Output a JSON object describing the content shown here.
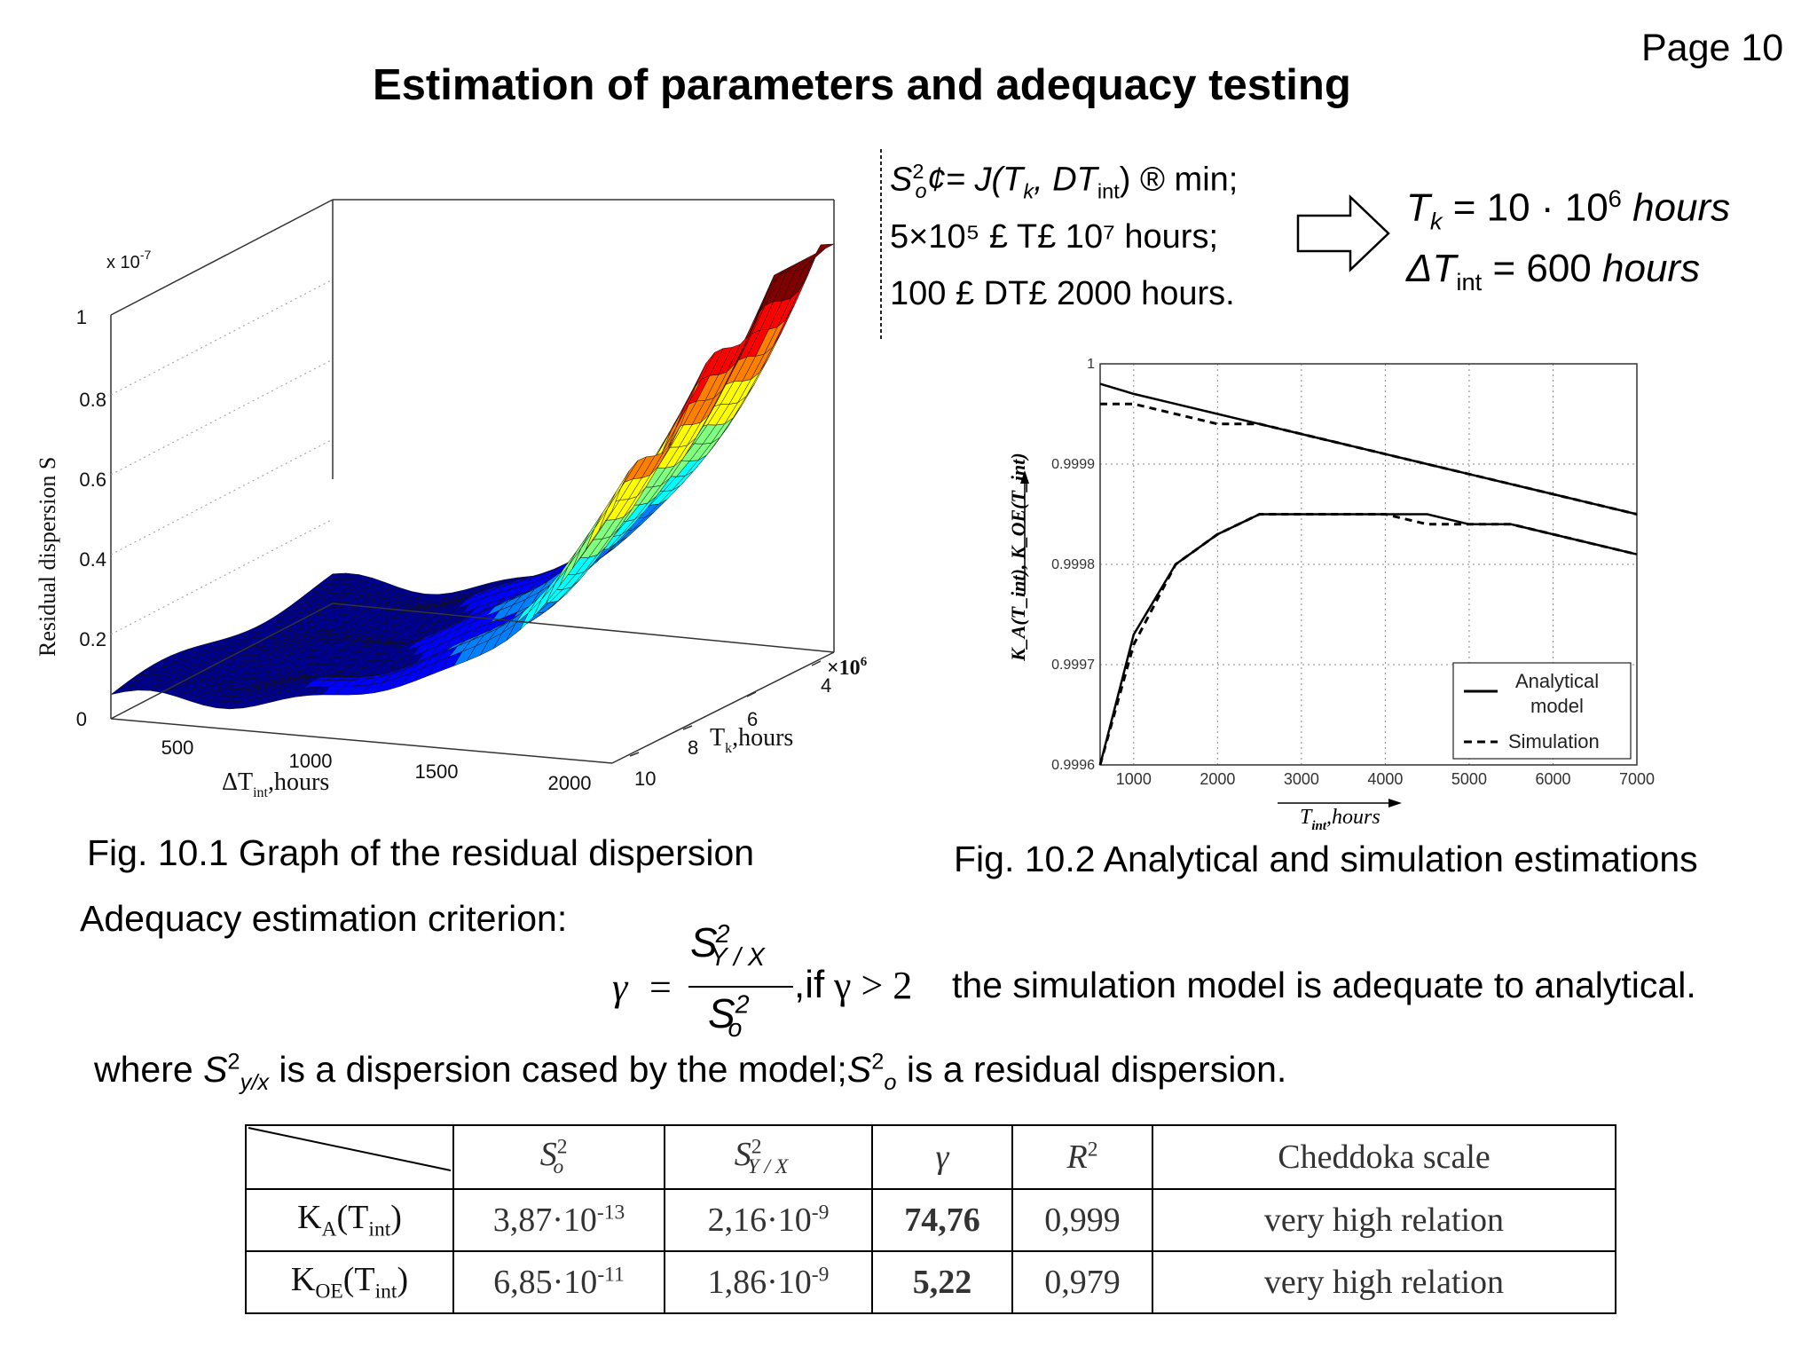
{
  "page": {
    "number": "Page 10",
    "title": "Estimation of parameters and adequacy testing"
  },
  "fig1": {
    "caption": "Fig. 10.1 Graph of the residual dispersion",
    "multiplier": "x 10",
    "multiplier_exp": "-7",
    "z_axis_label": "Residual dispersion S",
    "z_ticks": [
      "0",
      "0.2",
      "0.4",
      "0.6",
      "0.8",
      "1"
    ],
    "x_axis_label": "ΔT",
    "x_axis_sub": "int",
    "x_axis_unit": ",hours",
    "x_ticks": [
      "500",
      "1000",
      "1500",
      "2000"
    ],
    "y_axis_label": "T",
    "y_axis_sub": "k",
    "y_axis_unit": ",hours",
    "y_multiplier": "×10",
    "y_multiplier_exp": "6",
    "y_ticks": [
      "4",
      "6",
      "8",
      "10"
    ],
    "colormap": [
      "#00008f",
      "#0000ff",
      "#0080ff",
      "#00ffff",
      "#80ff80",
      "#ffff00",
      "#ff8000",
      "#ff0000",
      "#800000"
    ]
  },
  "conditions": {
    "line1": {
      "text": "S",
      "sub": "o",
      "sup": "2",
      "rest": "¢= J(T",
      "rest2": ", DT",
      "rest3": ") ® min;"
    },
    "line2": "5×10⁵ £ T£ 10⁷ hours;",
    "line3": "100 £ DT£ 2000 hours."
  },
  "result": {
    "tk": "T",
    "tk_sub": "k",
    "tk_value": "= 10 · 10",
    "tk_exp": "6",
    "tk_unit": "hours",
    "dt": "ΔT",
    "dt_sub": "int",
    "dt_value": "= 600",
    "dt_unit": "hours"
  },
  "fig2": {
    "caption": "Fig. 10.2 Analytical and simulation estimations",
    "y_ticks": [
      "0.9996",
      "0.9997",
      "0.9998",
      "0.9999",
      "1"
    ],
    "x_ticks": [
      "1000",
      "2000",
      "3000",
      "4000",
      "5000",
      "6000",
      "7000"
    ],
    "y_label": "K_A(T_int), K_OE(T_int)",
    "x_label": "T",
    "x_label_sub": "int",
    "x_label_unit": ",hours",
    "legend": {
      "analytical_1": "Analytical",
      "analytical_2": "model",
      "simulation": "Simulation"
    }
  },
  "chart_data": {
    "type": "line",
    "title": "",
    "xlabel": "T_int, hours",
    "ylabel": "K_A(T_int), K_OE(T_int)",
    "xlim": [
      600,
      7000
    ],
    "ylim": [
      0.9996,
      1
    ],
    "grid": true,
    "legend_position": "bottom-right",
    "x": [
      600,
      1000,
      1500,
      2000,
      2500,
      3000,
      3500,
      4000,
      4500,
      5000,
      5500,
      6000,
      6500,
      7000
    ],
    "series": [
      {
        "name": "Analytical model",
        "values": [
          0.99998,
          0.99997,
          0.99996,
          0.99995,
          0.99994,
          0.99993,
          0.99992,
          0.99991,
          0.9999,
          0.99989,
          0.99988,
          0.99987,
          0.99986,
          0.99985
        ]
      },
      {
        "name": "Simulation",
        "values": [
          0.99996,
          0.99996,
          0.99995,
          0.99994,
          0.99994,
          0.99993,
          0.99992,
          0.99991,
          0.9999,
          0.99989,
          0.99988,
          0.99987,
          0.99986,
          0.99985
        ]
      },
      {
        "name": "Analytical model",
        "values": [
          0.9996,
          0.99973,
          0.9998,
          0.99983,
          0.99985,
          0.99985,
          0.99985,
          0.99985,
          0.99985,
          0.99984,
          0.99984,
          0.99983,
          0.99982,
          0.99981
        ]
      },
      {
        "name": "Simulation",
        "values": [
          0.9996,
          0.99972,
          0.9998,
          0.99983,
          0.99985,
          0.99985,
          0.99985,
          0.99985,
          0.99984,
          0.99984,
          0.99984,
          0.99983,
          0.99982,
          0.99981
        ]
      }
    ]
  },
  "criterion": {
    "label": "Adequacy estimation criterion:",
    "gamma": "γ",
    "equals": "=",
    "numerator": "S",
    "numerator_sup": "2",
    "numerator_sub": "Y / X",
    "denominator": "S",
    "denominator_sup": "2",
    "denominator_sub": "o",
    "condition": ",if",
    "inequality": "γ > 2",
    "conclusion": "the simulation model is adequate to analytical."
  },
  "where_line": {
    "p1": "where ",
    "s1": "S",
    "s1_sup": "2",
    "s1_sub": "y/x",
    "p2": " is a dispersion cased by the model;",
    "s2": "S",
    "s2_sup": "2",
    "s2_sub": "o",
    "p3": " is a residual dispersion."
  },
  "table": {
    "headers": [
      "S",
      "S",
      "γ",
      "R",
      "Cheddoka scale"
    ],
    "header_sups": [
      "2",
      "2",
      "",
      "2",
      ""
    ],
    "header_subs": [
      "o",
      "Y / X",
      "",
      "",
      ""
    ],
    "rows": [
      {
        "label": "K",
        "label_sub": "A",
        "label_arg": "(T",
        "label_arg_sub": "int",
        "label_close": ")",
        "s0": "3,87·10",
        "s0_exp": "-13",
        "syx": "2,16·10",
        "syx_exp": "-9",
        "gamma": "74,76",
        "r2": "0,999",
        "scale": "very high relation"
      },
      {
        "label": "K",
        "label_sub": "OE",
        "label_arg": "(T",
        "label_arg_sub": "int",
        "label_close": ")",
        "s0": "6,85·10",
        "s0_exp": "-11",
        "syx": "1,86·10",
        "syx_exp": "-9",
        "gamma": "5,22",
        "r2": "0,979",
        "scale": "very high relation"
      }
    ]
  }
}
